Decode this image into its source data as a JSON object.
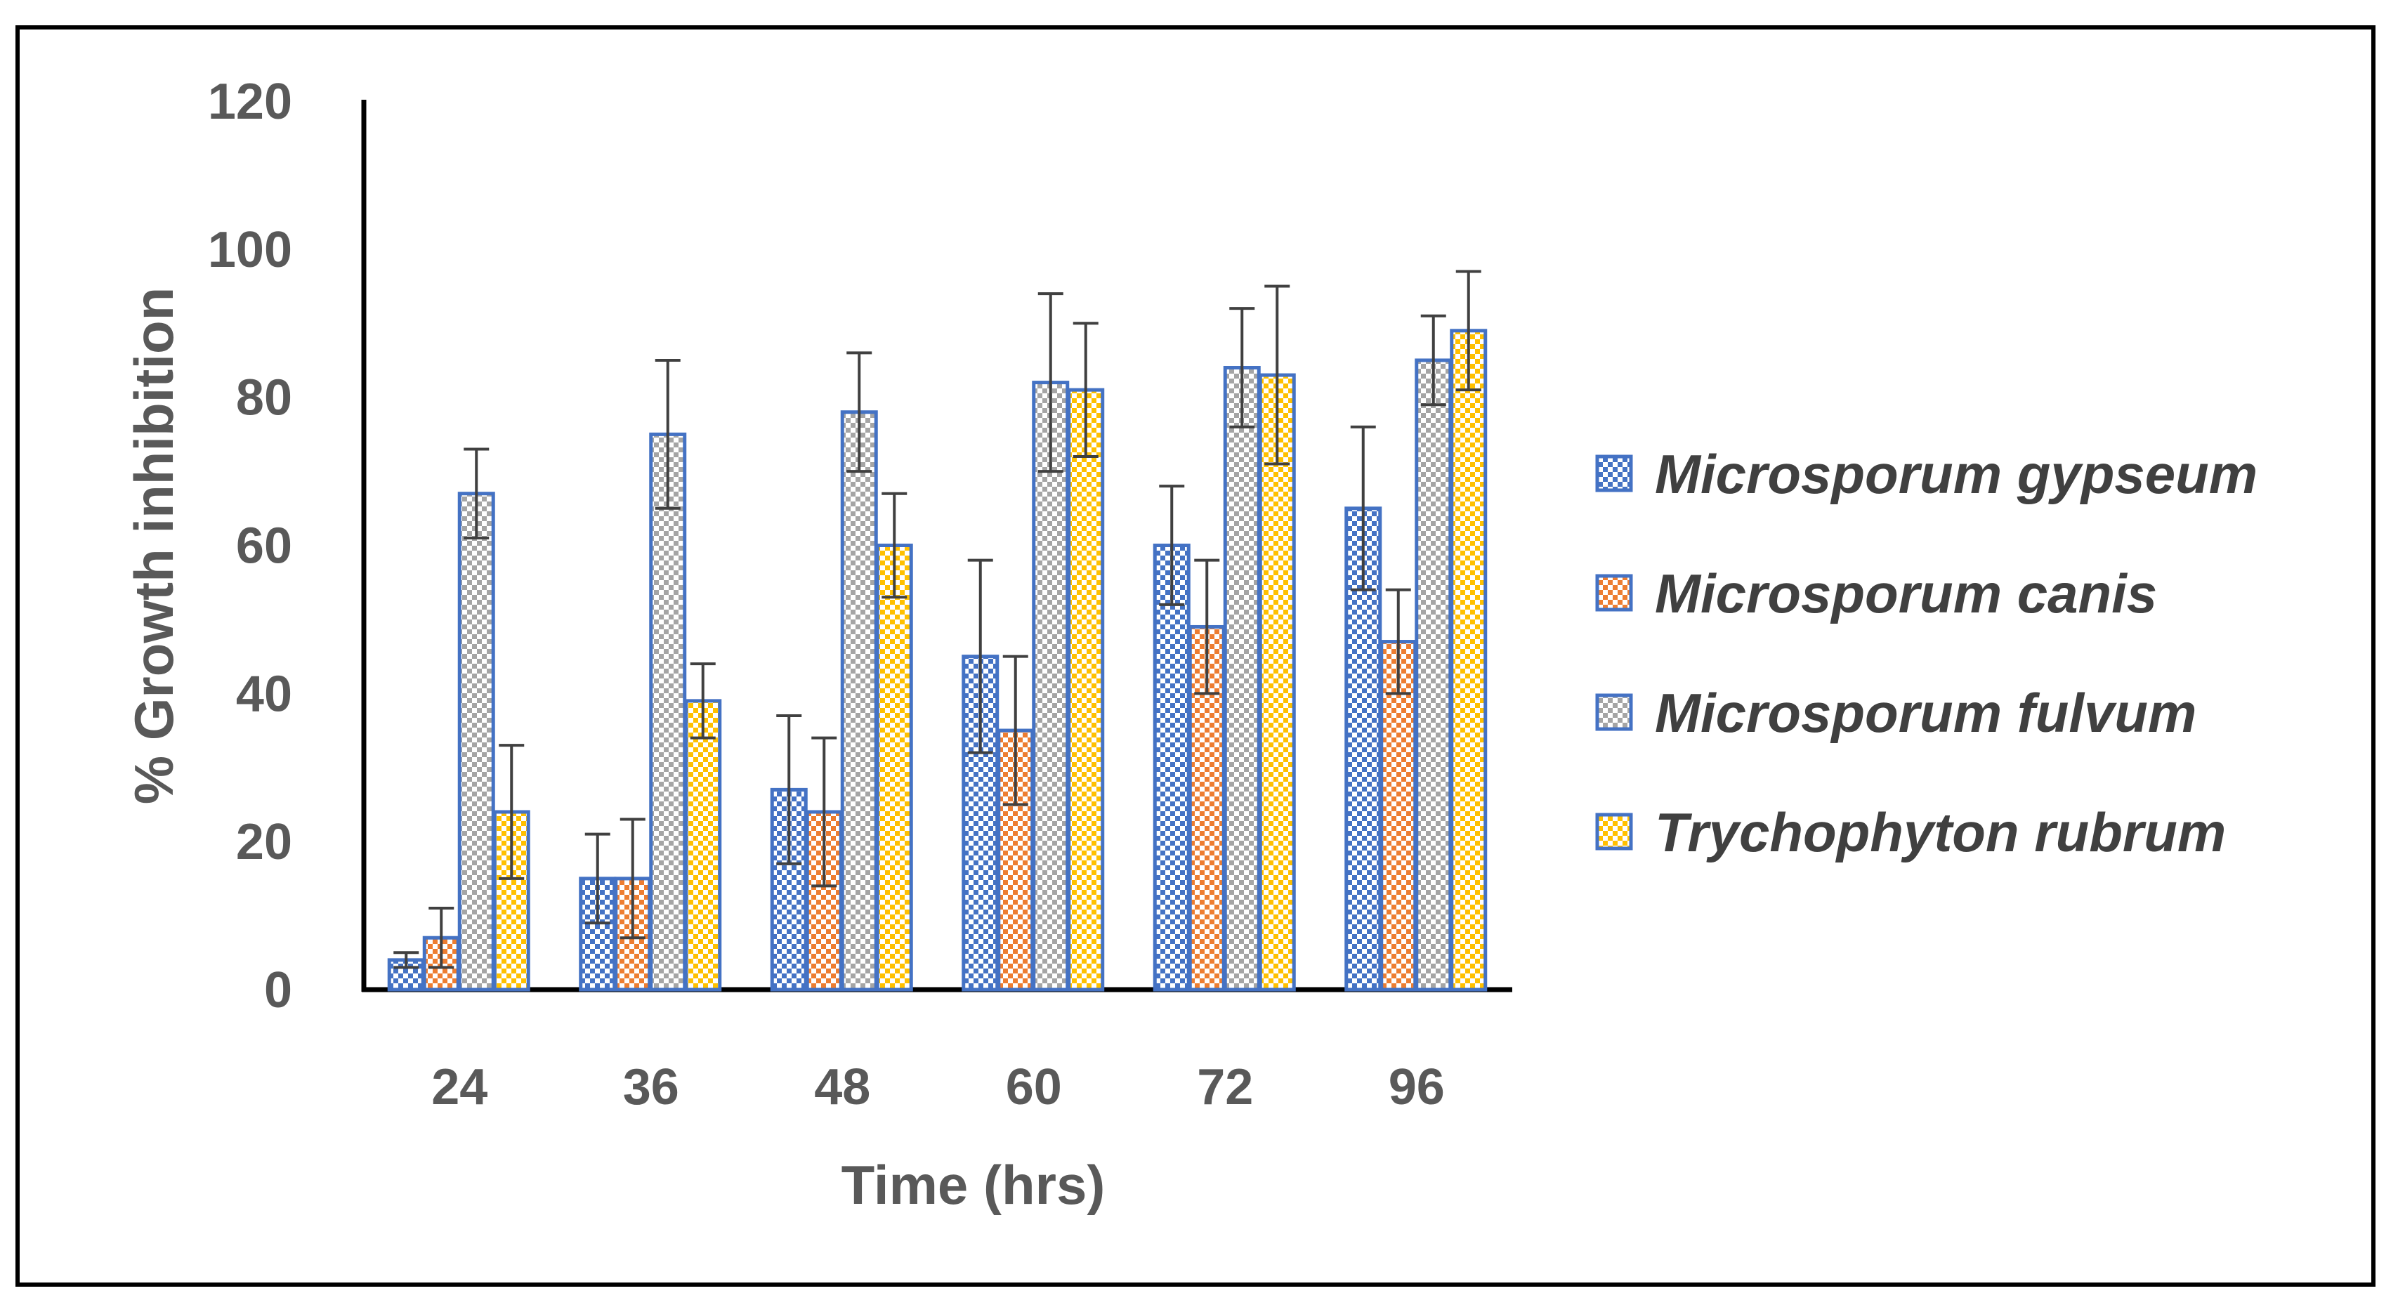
{
  "chart_data": {
    "type": "bar",
    "title": "",
    "xlabel": "Time (hrs)",
    "ylabel": "% Growth inhibition",
    "ylim": [
      0,
      120
    ],
    "yticks": [
      "0",
      "20",
      "40",
      "60",
      "80",
      "100",
      "120"
    ],
    "grid": false,
    "legend_position": "right",
    "categories": [
      "24",
      "36",
      "48",
      "60",
      "72",
      "96"
    ],
    "series": [
      {
        "name": "Microsporum gypseum",
        "color": "#4472C4",
        "values": [
          4,
          15,
          27,
          45,
          60,
          65
        ],
        "errors": [
          1,
          6,
          10,
          13,
          8,
          11
        ]
      },
      {
        "name": "Microsporum canis",
        "color": "#ED7D31",
        "values": [
          7,
          15,
          24,
          35,
          49,
          47
        ],
        "errors": [
          4,
          8,
          10,
          10,
          9,
          7
        ]
      },
      {
        "name": "Microsporum fulvum",
        "color": "#A5A5A5",
        "values": [
          67,
          75,
          78,
          82,
          84,
          85
        ],
        "errors": [
          6,
          10,
          8,
          12,
          8,
          6
        ]
      },
      {
        "name": "Trychophyton rubrum",
        "color": "#FFC000",
        "values": [
          24,
          39,
          60,
          81,
          83,
          89
        ],
        "errors": [
          9,
          5,
          7,
          9,
          12,
          8
        ]
      }
    ]
  }
}
